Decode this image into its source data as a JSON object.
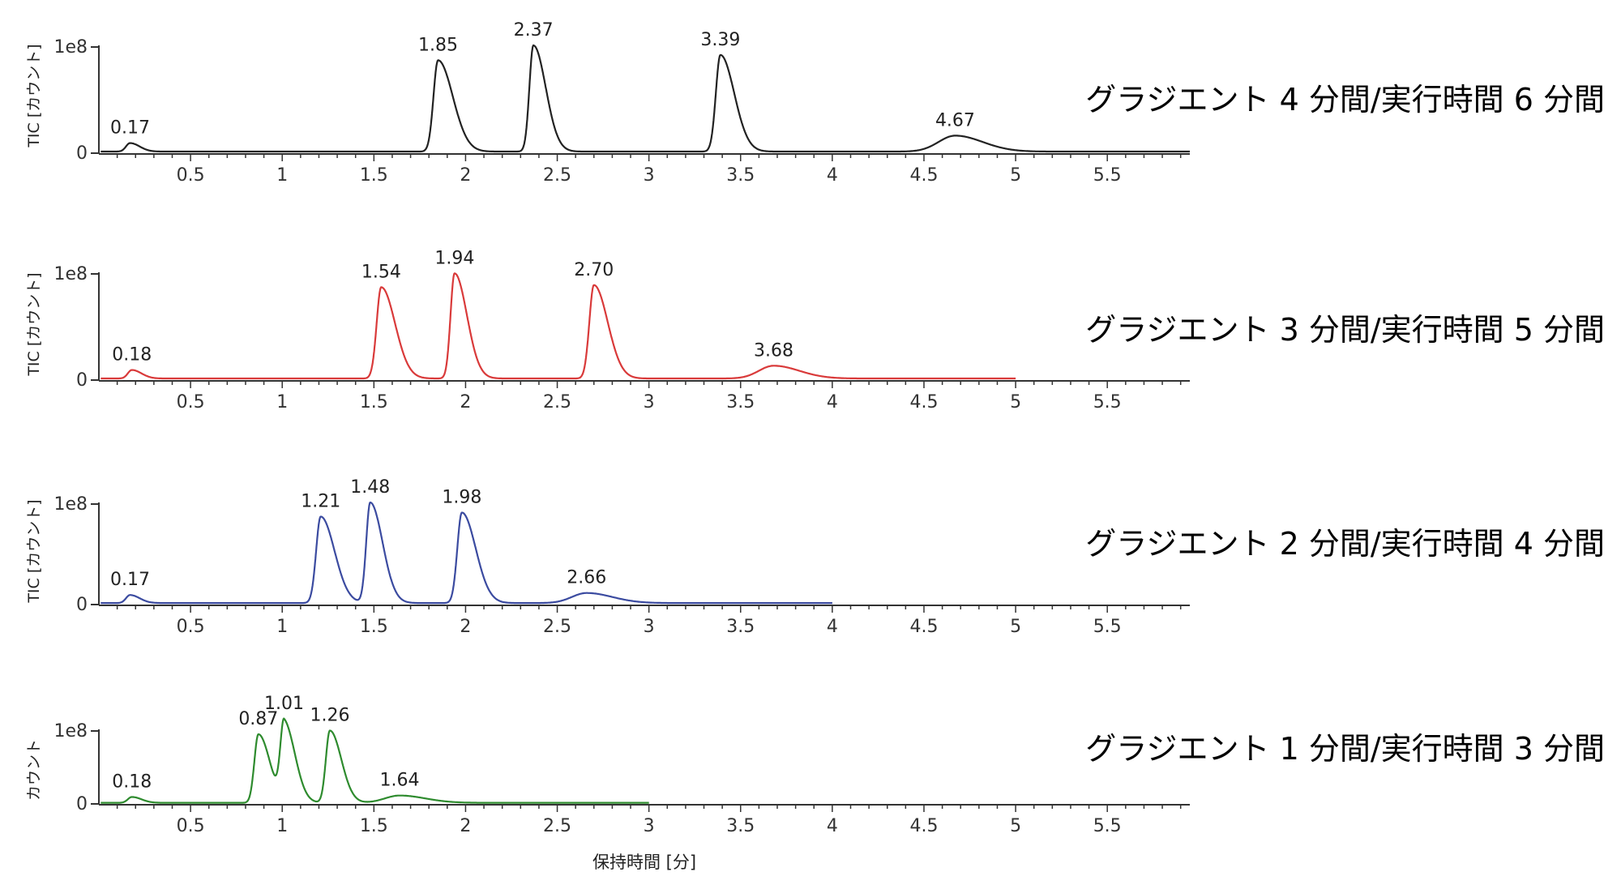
{
  "xlabel": "保持時間 [分]",
  "x_ticks": [
    "0.5",
    "1",
    "1.5",
    "2",
    "2.5",
    "3",
    "3.5",
    "4",
    "4.5",
    "5",
    "5.5"
  ],
  "chart_data": [
    {
      "type": "line",
      "run_label": "グラジエント 4 分間/実行時間 6 分間",
      "ylabel": "TIC [カウント]",
      "y_tick_labels": [
        "0",
        "1e8"
      ],
      "color": "#222222",
      "xlim": [
        0,
        5.95
      ],
      "ylim": [
        0,
        100000000
      ],
      "x_end": 5.95,
      "baseline": 1.5,
      "peaks": [
        {
          "label": "0.17",
          "x": 0.17,
          "height": 8,
          "width": 0.022,
          "tail": 0.03
        },
        {
          "label": "1.85",
          "x": 1.85,
          "height": 86,
          "width": 0.025,
          "tail": 0.055
        },
        {
          "label": "2.37",
          "x": 2.37,
          "height": 100,
          "width": 0.022,
          "tail": 0.045
        },
        {
          "label": "3.39",
          "x": 3.39,
          "height": 91,
          "width": 0.025,
          "tail": 0.05
        },
        {
          "label": "4.67",
          "x": 4.67,
          "height": 15,
          "width": 0.09,
          "tail": 0.06
        }
      ]
    },
    {
      "type": "line",
      "run_label": "グラジエント 3 分間/実行時間 5 分間",
      "ylabel": "TIC [カウント]",
      "y_tick_labels": [
        "0",
        "1e8"
      ],
      "color": "#d93a3a",
      "xlim": [
        0,
        5.95
      ],
      "ylim": [
        0,
        100000000
      ],
      "x_end": 5.0,
      "baseline": 1.5,
      "peaks": [
        {
          "label": "0.18",
          "x": 0.18,
          "height": 8,
          "width": 0.022,
          "tail": 0.03
        },
        {
          "label": "1.54",
          "x": 1.54,
          "height": 86,
          "width": 0.025,
          "tail": 0.05
        },
        {
          "label": "1.94",
          "x": 1.94,
          "height": 99,
          "width": 0.022,
          "tail": 0.045
        },
        {
          "label": "2.70",
          "x": 2.7,
          "height": 88,
          "width": 0.025,
          "tail": 0.05
        },
        {
          "label": "3.68",
          "x": 3.68,
          "height": 12,
          "width": 0.08,
          "tail": 0.06
        }
      ]
    },
    {
      "type": "line",
      "run_label": "グラジエント 2 分間/実行時間 4 分間",
      "ylabel": "TIC [カウント]",
      "y_tick_labels": [
        "0",
        "1e8"
      ],
      "color": "#3b4ba0",
      "xlim": [
        0,
        5.95
      ],
      "ylim": [
        0,
        100000000
      ],
      "x_end": 4.0,
      "baseline": 1.5,
      "peaks": [
        {
          "label": "0.17",
          "x": 0.17,
          "height": 8,
          "width": 0.022,
          "tail": 0.03
        },
        {
          "label": "1.21",
          "x": 1.21,
          "height": 86,
          "width": 0.025,
          "tail": 0.05
        },
        {
          "label": "1.48",
          "x": 1.48,
          "height": 100,
          "width": 0.022,
          "tail": 0.045
        },
        {
          "label": "1.98",
          "x": 1.98,
          "height": 90,
          "width": 0.025,
          "tail": 0.05
        },
        {
          "label": "2.66",
          "x": 2.66,
          "height": 10,
          "width": 0.08,
          "tail": 0.06
        }
      ]
    },
    {
      "type": "line",
      "run_label": "グラジエント 1 分間/実行時間 3 分間",
      "ylabel": "カウント",
      "y_tick_labels": [
        "0",
        "1e8"
      ],
      "color": "#2e8b2e",
      "xlim": [
        0,
        5.95
      ],
      "ylim": [
        0,
        100000000
      ],
      "x_end": 3.0,
      "baseline": 1.5,
      "peaks": [
        {
          "label": "0.18",
          "x": 0.18,
          "height": 8,
          "width": 0.022,
          "tail": 0.03
        },
        {
          "label": "0.87",
          "x": 0.87,
          "height": 94,
          "width": 0.022,
          "tail": 0.04
        },
        {
          "label": "1.01",
          "x": 1.01,
          "height": 108,
          "width": 0.02,
          "tail": 0.04
        },
        {
          "label": "1.26",
          "x": 1.26,
          "height": 99,
          "width": 0.022,
          "tail": 0.04
        },
        {
          "label": "1.64",
          "x": 1.64,
          "height": 10,
          "width": 0.08,
          "tail": 0.06
        }
      ]
    }
  ]
}
